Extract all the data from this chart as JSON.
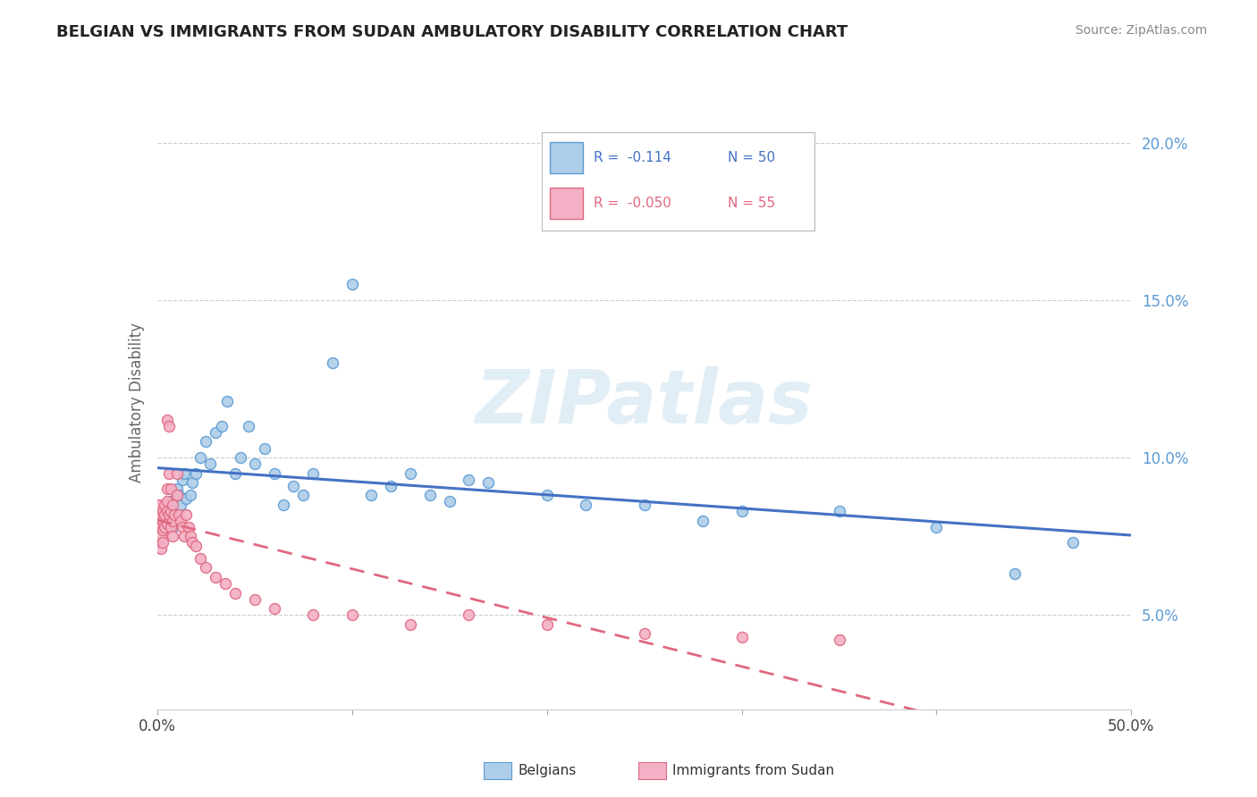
{
  "title": "BELGIAN VS IMMIGRANTS FROM SUDAN AMBULATORY DISABILITY CORRELATION CHART",
  "source": "Source: ZipAtlas.com",
  "ylabel": "Ambulatory Disability",
  "watermark": "ZIPatlas",
  "xlim": [
    0.0,
    0.5
  ],
  "ylim": [
    0.02,
    0.215
  ],
  "xtick_positions": [
    0.0,
    0.1,
    0.2,
    0.3,
    0.4,
    0.5
  ],
  "xtick_labels_bottom": [
    "0.0%",
    "",
    "",
    "",
    "",
    "50.0%"
  ],
  "yticks_right": [
    0.05,
    0.1,
    0.15,
    0.2
  ],
  "ytick_right_labels": [
    "5.0%",
    "10.0%",
    "15.0%",
    "20.0%"
  ],
  "belgian_color": "#aecde8",
  "belgian_edge_color": "#5b9bd5",
  "sudan_color": "#f4b0c5",
  "sudan_edge_color": "#e06880",
  "belgian_line_color": "#4472c4",
  "sudan_line_color": "#e06880",
  "legend_R_belgian": "R =  -0.114",
  "legend_N_belgian": "N = 50",
  "legend_R_sudan": "R =  -0.050",
  "legend_N_sudan": "N = 55",
  "background_color": "#ffffff",
  "grid_color": "#cccccc",
  "belgian_x": [
    0.003,
    0.004,
    0.005,
    0.006,
    0.007,
    0.008,
    0.009,
    0.01,
    0.011,
    0.012,
    0.013,
    0.014,
    0.015,
    0.017,
    0.018,
    0.02,
    0.022,
    0.025,
    0.027,
    0.03,
    0.033,
    0.036,
    0.04,
    0.043,
    0.047,
    0.05,
    0.055,
    0.06,
    0.065,
    0.07,
    0.075,
    0.08,
    0.09,
    0.1,
    0.11,
    0.12,
    0.13,
    0.14,
    0.15,
    0.16,
    0.17,
    0.2,
    0.22,
    0.25,
    0.28,
    0.3,
    0.35,
    0.4,
    0.44,
    0.47
  ],
  "belgian_y": [
    0.083,
    0.082,
    0.08,
    0.083,
    0.086,
    0.078,
    0.082,
    0.09,
    0.088,
    0.085,
    0.093,
    0.095,
    0.087,
    0.088,
    0.092,
    0.095,
    0.1,
    0.105,
    0.098,
    0.108,
    0.11,
    0.118,
    0.095,
    0.1,
    0.11,
    0.098,
    0.103,
    0.095,
    0.085,
    0.091,
    0.088,
    0.095,
    0.13,
    0.155,
    0.088,
    0.091,
    0.095,
    0.088,
    0.086,
    0.093,
    0.092,
    0.088,
    0.085,
    0.085,
    0.08,
    0.083,
    0.083,
    0.078,
    0.063,
    0.073
  ],
  "sudan_x": [
    0.001,
    0.001,
    0.001,
    0.002,
    0.002,
    0.002,
    0.002,
    0.003,
    0.003,
    0.003,
    0.003,
    0.004,
    0.004,
    0.004,
    0.005,
    0.005,
    0.005,
    0.005,
    0.005,
    0.006,
    0.006,
    0.006,
    0.007,
    0.007,
    0.007,
    0.008,
    0.008,
    0.008,
    0.009,
    0.01,
    0.01,
    0.011,
    0.012,
    0.013,
    0.014,
    0.015,
    0.016,
    0.017,
    0.018,
    0.02,
    0.022,
    0.025,
    0.03,
    0.035,
    0.04,
    0.05,
    0.06,
    0.08,
    0.1,
    0.13,
    0.16,
    0.2,
    0.25,
    0.3,
    0.35
  ],
  "sudan_y": [
    0.085,
    0.078,
    0.073,
    0.082,
    0.078,
    0.075,
    0.071,
    0.083,
    0.08,
    0.077,
    0.073,
    0.085,
    0.082,
    0.078,
    0.112,
    0.09,
    0.086,
    0.083,
    0.079,
    0.11,
    0.095,
    0.082,
    0.09,
    0.083,
    0.078,
    0.085,
    0.08,
    0.075,
    0.082,
    0.095,
    0.088,
    0.082,
    0.08,
    0.078,
    0.075,
    0.082,
    0.078,
    0.075,
    0.073,
    0.072,
    0.068,
    0.065,
    0.062,
    0.06,
    0.057,
    0.055,
    0.052,
    0.05,
    0.05,
    0.047,
    0.05,
    0.047,
    0.044,
    0.043,
    0.042
  ]
}
